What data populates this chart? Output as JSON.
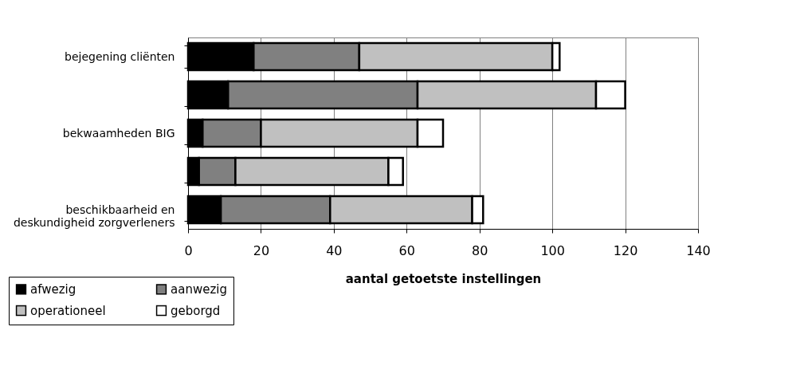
{
  "chart_data": {
    "type": "bar",
    "orientation": "horizontal",
    "stacked": true,
    "xlabel": "aantal getoetste instellingen",
    "categories": [
      "bejegening cliënten",
      null,
      "bekwaamheden BIG",
      null,
      "beschikbaarheid en deskundigheid zorgverleners"
    ],
    "series": [
      {
        "name": "afwezig",
        "color": "#000000",
        "values": [
          18,
          11,
          4,
          3,
          9
        ]
      },
      {
        "name": "aanwezig",
        "color": "#808080",
        "values": [
          29,
          52,
          16,
          10,
          30
        ]
      },
      {
        "name": "operationeel",
        "color": "#c0c0c0",
        "values": [
          53,
          49,
          43,
          42,
          39
        ]
      },
      {
        "name": "geborgd",
        "color": "#ffffff",
        "values": [
          2,
          8,
          7,
          4,
          3
        ]
      }
    ],
    "xlim": [
      0,
      140
    ],
    "xticks": [
      0,
      20,
      40,
      60,
      80,
      100,
      120,
      140
    ],
    "grid": "x",
    "legend": "bottom left"
  }
}
